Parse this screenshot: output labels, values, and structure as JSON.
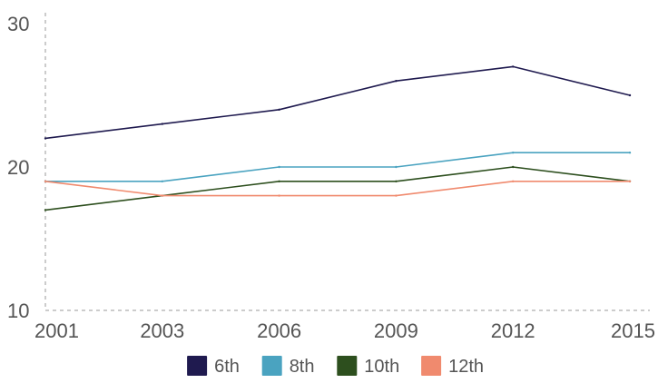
{
  "chart_data": {
    "type": "line",
    "title": "",
    "xlabel": "",
    "ylabel": "",
    "categories": [
      "2001",
      "2003",
      "2006",
      "2009",
      "2012",
      "2015"
    ],
    "ylim": [
      10,
      30
    ],
    "yticks": [
      "10",
      "20",
      "30"
    ],
    "grid": false,
    "legend_position": "bottom",
    "series": [
      {
        "name": "6th",
        "color": "#1f1a4f",
        "values": [
          22.0,
          23.0,
          24.0,
          26.0,
          27.0,
          25.0
        ]
      },
      {
        "name": "8th",
        "color": "#4aa3c0",
        "values": [
          19.0,
          19.0,
          20.0,
          20.0,
          21.0,
          21.0
        ]
      },
      {
        "name": "10th",
        "color": "#2d4f1e",
        "values": [
          17.0,
          18.0,
          19.0,
          19.0,
          20.0,
          19.0
        ]
      },
      {
        "name": "12th",
        "color": "#f08a6e",
        "values": [
          19.0,
          18.0,
          18.0,
          18.0,
          19.0,
          19.0
        ]
      }
    ]
  }
}
